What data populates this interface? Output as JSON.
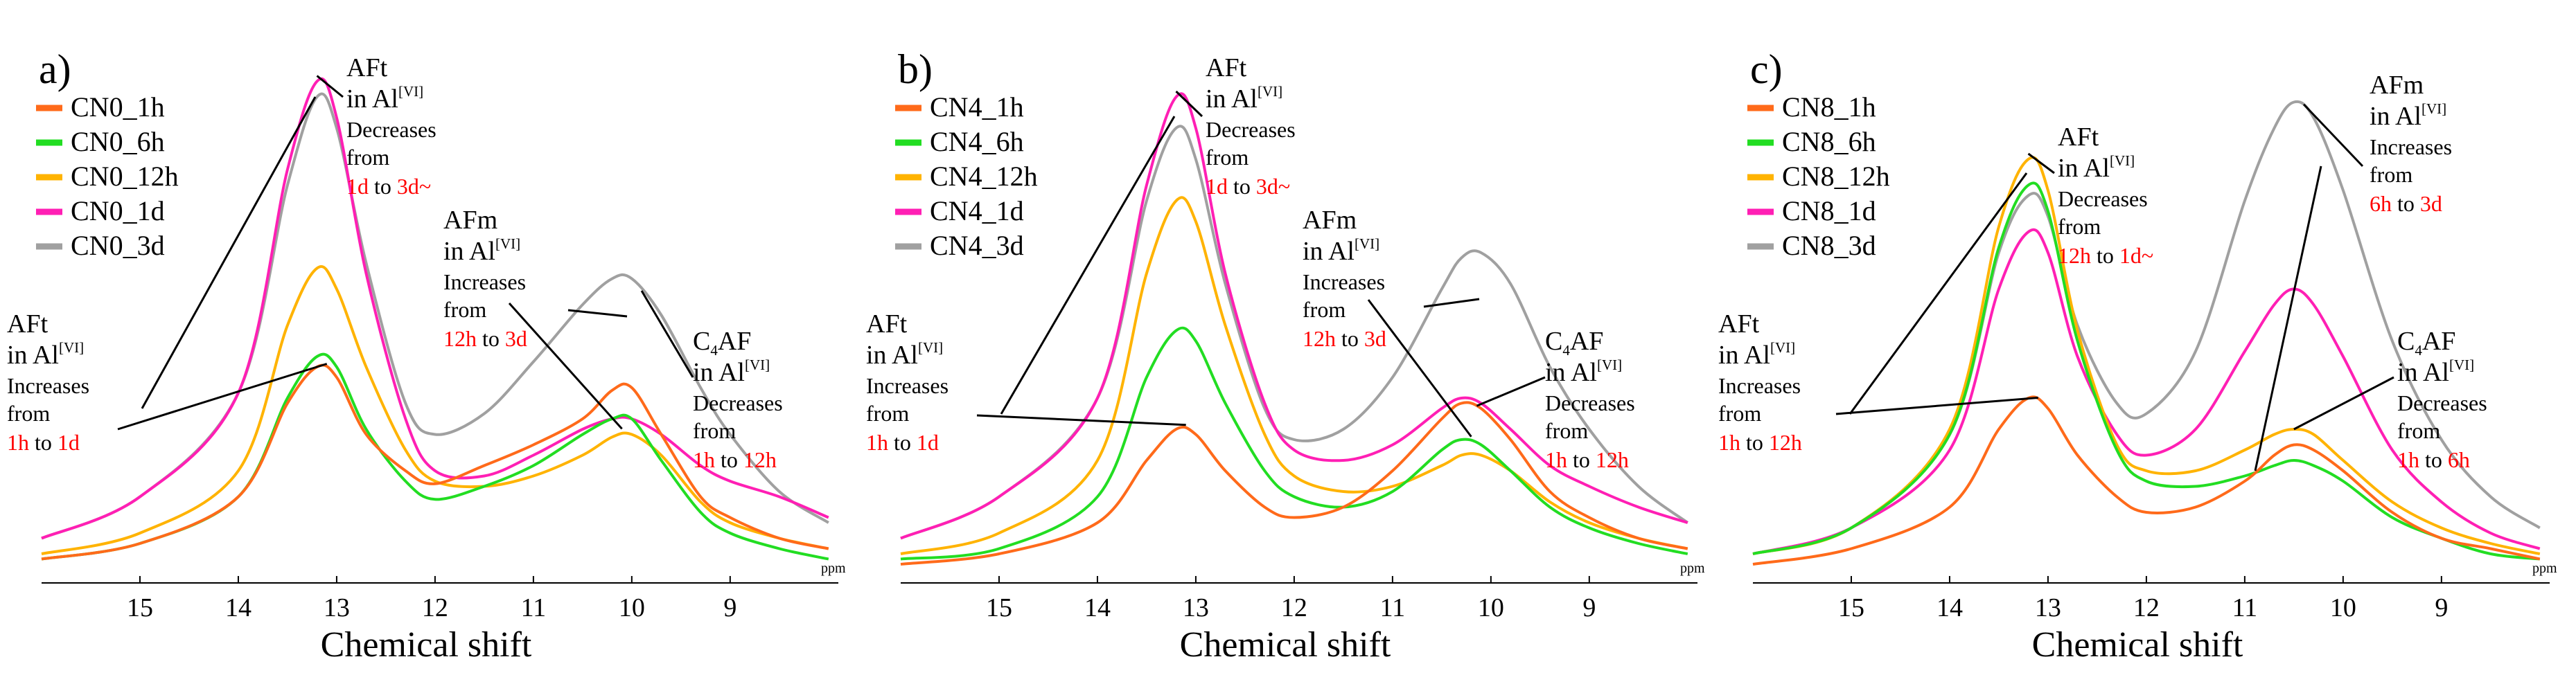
{
  "chart_data": [
    {
      "type": "line",
      "panel_label": "a)",
      "xlabel": "Chemical shift",
      "x_unit": "ppm",
      "xlim": [
        16,
        7.9
      ],
      "ylim": [
        0,
        1.0
      ],
      "x_ticks": [
        15,
        14,
        13,
        12,
        11,
        10,
        9
      ],
      "legend_position": "top-left",
      "series": [
        {
          "name": "CN0_1h",
          "color": "#ff6a1a",
          "x": [
            16.0,
            15.0,
            14.0,
            13.5,
            13.2,
            13.0,
            12.7,
            12.3,
            12.0,
            11.5,
            11.0,
            10.5,
            10.2,
            10.0,
            9.7,
            9.3,
            9.0,
            8.5,
            8.0
          ],
          "y": [
            0.03,
            0.06,
            0.15,
            0.33,
            0.4,
            0.38,
            0.27,
            0.2,
            0.175,
            0.21,
            0.25,
            0.3,
            0.355,
            0.36,
            0.27,
            0.15,
            0.11,
            0.07,
            0.05
          ]
        },
        {
          "name": "CN0_6h",
          "color": "#22dd22",
          "x": [
            16.0,
            15.0,
            14.0,
            13.5,
            13.2,
            13.0,
            12.7,
            12.3,
            12.0,
            11.5,
            11.0,
            10.5,
            10.2,
            10.0,
            9.7,
            9.3,
            9.0,
            8.5,
            8.0
          ],
          "y": [
            0.03,
            0.06,
            0.15,
            0.34,
            0.42,
            0.4,
            0.28,
            0.18,
            0.145,
            0.17,
            0.21,
            0.27,
            0.3,
            0.3,
            0.22,
            0.12,
            0.08,
            0.05,
            0.03
          ]
        },
        {
          "name": "CN0_12h",
          "color": "#ffb300",
          "x": [
            16.0,
            15.0,
            14.0,
            13.5,
            13.2,
            13.0,
            12.7,
            12.3,
            12.0,
            11.5,
            11.0,
            10.5,
            10.2,
            10.0,
            9.7,
            9.3,
            9.0,
            8.5,
            8.0
          ],
          "y": [
            0.04,
            0.08,
            0.2,
            0.48,
            0.59,
            0.55,
            0.4,
            0.24,
            0.18,
            0.17,
            0.19,
            0.23,
            0.265,
            0.27,
            0.23,
            0.14,
            0.1,
            0.07,
            0.05
          ]
        },
        {
          "name": "CN0_1d",
          "color": "#ff1fb4",
          "x": [
            16.0,
            15.0,
            14.0,
            13.5,
            13.2,
            13.0,
            12.7,
            12.3,
            12.0,
            11.5,
            11.0,
            10.5,
            10.2,
            10.0,
            9.7,
            9.3,
            9.0,
            8.5,
            8.0
          ],
          "y": [
            0.07,
            0.15,
            0.35,
            0.78,
            0.95,
            0.88,
            0.58,
            0.3,
            0.2,
            0.19,
            0.23,
            0.28,
            0.3,
            0.3,
            0.27,
            0.21,
            0.18,
            0.15,
            0.11
          ]
        },
        {
          "name": "CN0_3d",
          "color": "#a0a0a0",
          "x": [
            16.0,
            15.0,
            14.0,
            13.5,
            13.2,
            13.0,
            12.7,
            12.3,
            12.0,
            11.5,
            11.0,
            10.5,
            10.2,
            10.0,
            9.7,
            9.3,
            9.0,
            8.5,
            8.0
          ],
          "y": [
            0.07,
            0.15,
            0.35,
            0.75,
            0.92,
            0.86,
            0.6,
            0.33,
            0.27,
            0.31,
            0.41,
            0.52,
            0.57,
            0.57,
            0.5,
            0.36,
            0.27,
            0.16,
            0.1
          ]
        }
      ],
      "annotations": [
        {
          "species": "AFt",
          "site": "Al",
          "site_sup": "[VI]",
          "verb": "Decreases",
          "from_word": "from",
          "start": "1d",
          "to_word": "to",
          "end": "3d~"
        },
        {
          "species": "AFm",
          "site": "Al",
          "site_sup": "[VI]",
          "verb": "Increases",
          "from_word": "from",
          "start": "12h",
          "to_word": "to",
          "end": "3d"
        },
        {
          "species": "AFt",
          "site": "Al",
          "site_sup": "[VI]",
          "verb": "Increases",
          "from_word": "from",
          "start": "1h",
          "to_word": "to",
          "end": "1d"
        },
        {
          "species": "C",
          "species_sub": "4",
          "species_after": "AF",
          "site": "Al",
          "site_sup": "[VI]",
          "verb": "Decreases",
          "from_word": "from",
          "start": "1h",
          "to_word": "to",
          "end": "12h"
        }
      ]
    },
    {
      "type": "line",
      "panel_label": "b)",
      "xlabel": "Chemical shift",
      "x_unit": "ppm",
      "xlim": [
        16,
        7.9
      ],
      "ylim": [
        0,
        1.0
      ],
      "x_ticks": [
        15,
        14,
        13,
        12,
        11,
        10,
        9
      ],
      "legend_position": "top-left",
      "series": [
        {
          "name": "CN4_1h",
          "color": "#ff6a1a",
          "x": [
            16.0,
            15.0,
            14.0,
            13.5,
            13.2,
            13.0,
            12.7,
            12.3,
            12.0,
            11.5,
            11.0,
            10.5,
            10.3,
            10.1,
            9.8,
            9.4,
            9.0,
            8.5,
            8.0
          ],
          "y": [
            0.02,
            0.04,
            0.1,
            0.22,
            0.28,
            0.27,
            0.2,
            0.13,
            0.11,
            0.13,
            0.2,
            0.3,
            0.33,
            0.32,
            0.26,
            0.16,
            0.11,
            0.07,
            0.05
          ]
        },
        {
          "name": "CN4_6h",
          "color": "#22dd22",
          "x": [
            16.0,
            15.0,
            14.0,
            13.5,
            13.2,
            13.0,
            12.7,
            12.3,
            12.0,
            11.5,
            11.0,
            10.5,
            10.3,
            10.1,
            9.8,
            9.4,
            9.0,
            8.5,
            8.0
          ],
          "y": [
            0.03,
            0.05,
            0.15,
            0.38,
            0.47,
            0.45,
            0.33,
            0.2,
            0.15,
            0.13,
            0.16,
            0.24,
            0.26,
            0.25,
            0.2,
            0.13,
            0.09,
            0.06,
            0.04
          ]
        },
        {
          "name": "CN4_12h",
          "color": "#ffb300",
          "x": [
            16.0,
            15.0,
            14.0,
            13.5,
            13.2,
            13.0,
            12.7,
            12.3,
            12.0,
            11.5,
            11.0,
            10.5,
            10.3,
            10.1,
            9.8,
            9.4,
            9.0,
            8.5,
            8.0
          ],
          "y": [
            0.04,
            0.08,
            0.22,
            0.58,
            0.72,
            0.68,
            0.48,
            0.27,
            0.19,
            0.16,
            0.17,
            0.21,
            0.23,
            0.23,
            0.2,
            0.14,
            0.1,
            0.07,
            0.05
          ]
        },
        {
          "name": "CN4_1d",
          "color": "#ff1fb4",
          "x": [
            16.0,
            15.0,
            14.0,
            13.5,
            13.2,
            13.0,
            12.7,
            12.3,
            12.0,
            11.5,
            11.0,
            10.5,
            10.3,
            10.1,
            9.8,
            9.4,
            9.0,
            8.5,
            8.0
          ],
          "y": [
            0.07,
            0.15,
            0.34,
            0.75,
            0.92,
            0.86,
            0.58,
            0.33,
            0.24,
            0.22,
            0.25,
            0.32,
            0.34,
            0.33,
            0.28,
            0.21,
            0.17,
            0.13,
            0.1
          ]
        },
        {
          "name": "CN4_3d",
          "color": "#a0a0a0",
          "x": [
            16.0,
            15.0,
            14.0,
            13.5,
            13.2,
            13.0,
            12.7,
            12.3,
            12.0,
            11.5,
            11.0,
            10.5,
            10.3,
            10.1,
            9.8,
            9.4,
            9.0,
            8.5,
            8.0
          ],
          "y": [
            0.07,
            0.15,
            0.34,
            0.72,
            0.86,
            0.8,
            0.56,
            0.32,
            0.26,
            0.28,
            0.38,
            0.55,
            0.61,
            0.62,
            0.56,
            0.4,
            0.28,
            0.17,
            0.1
          ]
        }
      ],
      "annotations": [
        {
          "species": "AFt",
          "site": "Al",
          "site_sup": "[VI]",
          "verb": "Decreases",
          "from_word": "from",
          "start": "1d",
          "to_word": "to",
          "end": "3d~"
        },
        {
          "species": "AFm",
          "site": "Al",
          "site_sup": "[VI]",
          "verb": "Increases",
          "from_word": "from",
          "start": "12h",
          "to_word": "to",
          "end": "3d"
        },
        {
          "species": "AFt",
          "site": "Al",
          "site_sup": "[VI]",
          "verb": "Increases",
          "from_word": "from",
          "start": "1h",
          "to_word": "to",
          "end": "1d"
        },
        {
          "species": "C",
          "species_sub": "4",
          "species_after": "AF",
          "site": "Al",
          "site_sup": "[VI]",
          "verb": "Decreases",
          "from_word": "from",
          "start": "1h",
          "to_word": "to",
          "end": "12h"
        }
      ]
    },
    {
      "type": "line",
      "panel_label": "c)",
      "xlabel": "Chemical shift",
      "x_unit": "ppm",
      "xlim": [
        16,
        7.9
      ],
      "ylim": [
        0,
        1.0
      ],
      "x_ticks": [
        15,
        14,
        13,
        12,
        11,
        10,
        9
      ],
      "legend_position": "top-left",
      "series": [
        {
          "name": "CN8_1h",
          "color": "#ff6a1a",
          "x": [
            16.0,
            15.0,
            14.0,
            13.5,
            13.2,
            13.0,
            12.7,
            12.3,
            12.0,
            11.5,
            11.0,
            10.7,
            10.5,
            10.3,
            10.0,
            9.5,
            9.0,
            8.5,
            8.0
          ],
          "y": [
            0.02,
            0.05,
            0.13,
            0.28,
            0.34,
            0.32,
            0.23,
            0.15,
            0.12,
            0.13,
            0.18,
            0.23,
            0.25,
            0.24,
            0.2,
            0.12,
            0.07,
            0.05,
            0.03
          ]
        },
        {
          "name": "CN8_6h",
          "color": "#22dd22",
          "x": [
            16.0,
            15.0,
            14.0,
            13.5,
            13.2,
            13.0,
            12.7,
            12.3,
            12.0,
            11.5,
            11.0,
            10.7,
            10.5,
            10.3,
            10.0,
            9.5,
            9.0,
            8.5,
            8.0
          ],
          "y": [
            0.04,
            0.09,
            0.27,
            0.63,
            0.75,
            0.7,
            0.45,
            0.24,
            0.18,
            0.17,
            0.19,
            0.21,
            0.22,
            0.21,
            0.18,
            0.11,
            0.07,
            0.04,
            0.03
          ]
        },
        {
          "name": "CN8_12h",
          "color": "#ffb300",
          "x": [
            16.0,
            15.0,
            14.0,
            13.5,
            13.2,
            13.0,
            12.7,
            12.3,
            12.0,
            11.5,
            11.0,
            10.7,
            10.5,
            10.3,
            10.0,
            9.5,
            9.0,
            8.5,
            8.0
          ],
          "y": [
            0.04,
            0.09,
            0.28,
            0.67,
            0.8,
            0.74,
            0.47,
            0.25,
            0.2,
            0.2,
            0.24,
            0.27,
            0.28,
            0.27,
            0.22,
            0.14,
            0.09,
            0.06,
            0.04
          ]
        },
        {
          "name": "CN8_1d",
          "color": "#ff1fb4",
          "x": [
            16.0,
            15.0,
            14.0,
            13.5,
            13.2,
            13.0,
            12.7,
            12.3,
            12.0,
            11.5,
            11.0,
            10.7,
            10.5,
            10.3,
            10.0,
            9.5,
            9.0,
            8.5,
            8.0
          ],
          "y": [
            0.04,
            0.09,
            0.24,
            0.55,
            0.66,
            0.62,
            0.42,
            0.27,
            0.23,
            0.28,
            0.43,
            0.52,
            0.55,
            0.52,
            0.42,
            0.24,
            0.14,
            0.08,
            0.05
          ]
        },
        {
          "name": "CN8_3d",
          "color": "#a0a0a0",
          "x": [
            16.0,
            15.0,
            14.0,
            13.5,
            13.2,
            13.0,
            12.7,
            12.3,
            12.0,
            11.5,
            11.0,
            10.7,
            10.5,
            10.3,
            10.0,
            9.5,
            9.0,
            8.5,
            8.0
          ],
          "y": [
            0.04,
            0.09,
            0.27,
            0.62,
            0.73,
            0.69,
            0.48,
            0.33,
            0.31,
            0.43,
            0.72,
            0.86,
            0.91,
            0.88,
            0.74,
            0.45,
            0.26,
            0.15,
            0.09
          ]
        }
      ],
      "annotations": [
        {
          "species": "AFt",
          "site": "Al",
          "site_sup": "[VI]",
          "verb": "Decreases",
          "from_word": "from",
          "start": "12h",
          "to_word": "to",
          "end": "1d~"
        },
        {
          "species": "AFm",
          "site": "Al",
          "site_sup": "[VI]",
          "verb": "Increases",
          "from_word": "from",
          "start": "6h",
          "to_word": "to",
          "end": "3d"
        },
        {
          "species": "AFt",
          "site": "Al",
          "site_sup": "[VI]",
          "verb": "Increases",
          "from_word": "from",
          "start": "1h",
          "to_word": "to",
          "end": "12h"
        },
        {
          "species": "C",
          "species_sub": "4",
          "species_after": "AF",
          "site": "Al",
          "site_sup": "[VI]",
          "verb": "Decreases",
          "from_word": "from",
          "start": "1h",
          "to_word": "to",
          "end": "6h"
        }
      ]
    }
  ]
}
